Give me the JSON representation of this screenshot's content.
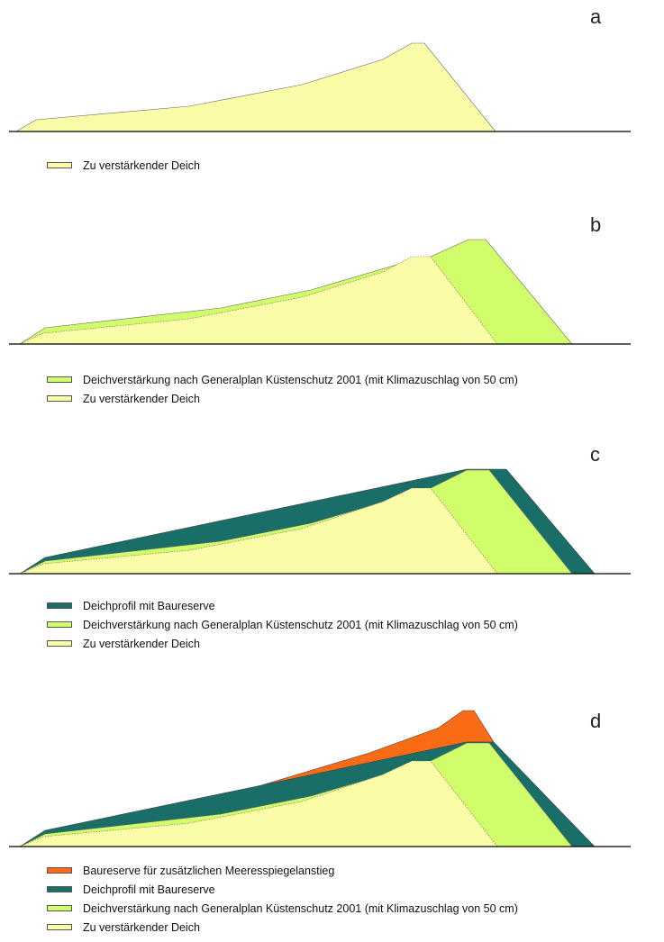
{
  "colors": {
    "existing": "#fbfca8",
    "reinforcement": "#d1fd6a",
    "reserve": "#1a6e68",
    "sealevel": "#f96b14",
    "baseline": "#000000"
  },
  "legend_labels": {
    "existing": "Zu verstärkender Deich",
    "reinforcement": "Deichverstärkung nach Generalplan Küstenschutz 2001 (mit Klimazuschlag von 50 cm)",
    "reserve": "Deichprofil mit Baureserve",
    "sealevel": "Baureserve für zusätzlichen Meeresspiegelanstieg"
  },
  "panels": [
    {
      "letter": "a",
      "legend": [
        {
          "key": "existing",
          "label": "Zu verstärkender Deich"
        }
      ]
    },
    {
      "letter": "b",
      "legend": [
        {
          "key": "reinforcement",
          "label": "Deichverstärkung nach Generalplan Küstenschutz 2001 (mit Klimazuschlag von 50 cm)"
        },
        {
          "key": "existing",
          "label": "Zu verstärkender Deich"
        }
      ]
    },
    {
      "letter": "c",
      "legend": [
        {
          "key": "reserve",
          "label": "Deichprofil mit Baureserve"
        },
        {
          "key": "reinforcement",
          "label": "Deichverstärkung nach Generalplan Küstenschutz 2001 (mit Klimazuschlag von 50 cm)"
        },
        {
          "key": "existing",
          "label": "Zu verstärkender Deich"
        }
      ]
    },
    {
      "letter": "d",
      "legend": [
        {
          "key": "sealevel",
          "label": "Baureserve für zusätzlichen Meeresspiegelanstieg"
        },
        {
          "key": "reserve",
          "label": "Deichprofil mit Baureserve"
        },
        {
          "key": "reinforcement",
          "label": "Deichverstärkung nach Generalplan Küstenschutz 2001 (mit Klimazuschlag von 50 cm)"
        },
        {
          "key": "existing",
          "label": "Zu verstärkender Deich"
        }
      ]
    }
  ]
}
